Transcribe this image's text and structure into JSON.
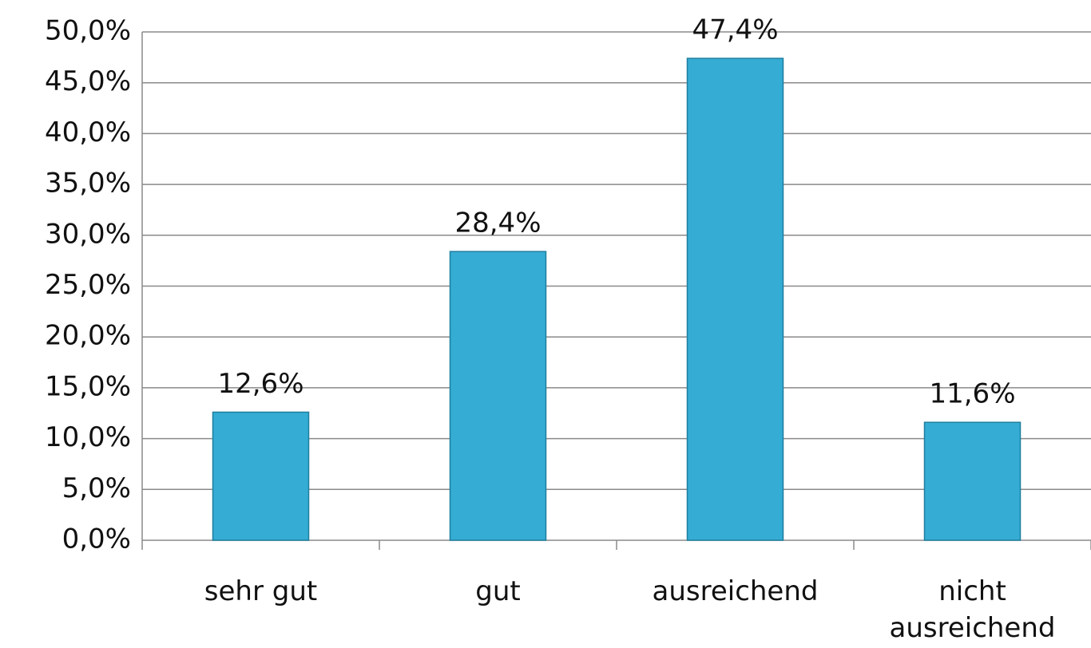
{
  "chart_data": {
    "type": "bar",
    "categories": [
      "sehr gut",
      "gut",
      "ausreichend",
      "nicht ausreichend"
    ],
    "values": [
      12.6,
      28.4,
      47.4,
      11.6
    ],
    "value_labels": [
      "12,6%",
      "28,4%",
      "47,4%",
      "11,6%"
    ],
    "color": "#35acd3",
    "ylim": [
      0,
      50
    ],
    "yticks": [
      {
        "value": 0,
        "label": "0,0%"
      },
      {
        "value": 5,
        "label": "5,0%"
      },
      {
        "value": 10,
        "label": "10,0%"
      },
      {
        "value": 15,
        "label": "15,0%"
      },
      {
        "value": 20,
        "label": "20,0%"
      },
      {
        "value": 25,
        "label": "25,0%"
      },
      {
        "value": 30,
        "label": "30,0%"
      },
      {
        "value": 35,
        "label": "35,0%"
      },
      {
        "value": 40,
        "label": "40,0%"
      },
      {
        "value": 45,
        "label": "45,0%"
      },
      {
        "value": 50,
        "label": "50,0%"
      }
    ],
    "grid": true
  }
}
